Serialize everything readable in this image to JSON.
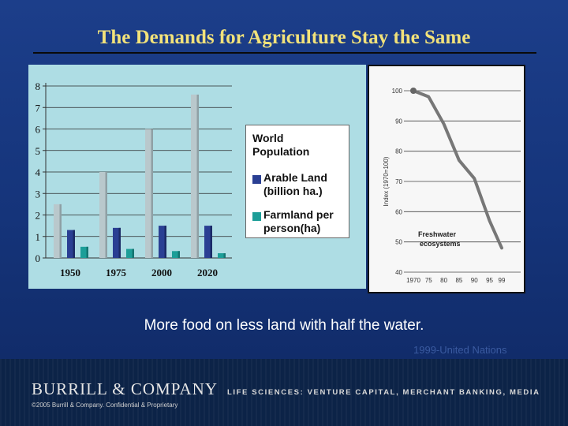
{
  "slide": {
    "title": "The Demands for Agriculture Stay the Same",
    "caption": "More food on less land with half the water.",
    "credit": "1999-United Nations"
  },
  "footer": {
    "brand": "BURRILL & COMPANY",
    "tagline": "LIFE SCIENCES: VENTURE CAPITAL, MERCHANT BANKING, MEDIA",
    "copyright": "©2005 Burrill & Company. Confidential & Proprietary"
  },
  "colors": {
    "population": "#b9c8cc",
    "arable": "#2a3f93",
    "farmland": "#1c9e98"
  },
  "chart_data": [
    {
      "type": "bar",
      "categories": [
        "1950",
        "1975",
        "2000",
        "2020"
      ],
      "yticks": [
        "0",
        "1",
        "2",
        "3",
        "4",
        "5",
        "6",
        "7",
        "8"
      ],
      "ylim": [
        0,
        8
      ],
      "series": [
        {
          "name": "World Population",
          "values": [
            2.5,
            4.0,
            6.0,
            7.6
          ]
        },
        {
          "name": "Arable Land (billion ha.)",
          "values": [
            1.3,
            1.4,
            1.5,
            1.5
          ]
        },
        {
          "name": "Farmland per person(ha)",
          "values": [
            0.52,
            0.42,
            0.32,
            0.22
          ]
        }
      ],
      "legend": [
        "World Population",
        "Arable Land (billion ha.)",
        "Farmland per person(ha)"
      ],
      "legend_lines": [
        [
          "World",
          "Population"
        ],
        [
          "Arable Land",
          "(billion ha.)"
        ],
        [
          "Farmland per",
          "person(ha)"
        ]
      ],
      "legend_position": "right"
    },
    {
      "type": "line",
      "ylabel": "Index (1970=100)",
      "ylim": [
        40,
        100
      ],
      "yticks": [
        "40",
        "50",
        "60",
        "70",
        "80",
        "90",
        "100"
      ],
      "xticks": [
        "1970",
        "75",
        "80",
        "85",
        "90",
        "95",
        "99"
      ],
      "series": [
        {
          "name": "Freshwater ecosystems",
          "label_lines": [
            "Freshwater",
            "ecosystems"
          ],
          "x": [
            1970,
            1975,
            1980,
            1985,
            1990,
            1995,
            1999
          ],
          "y": [
            100,
            98,
            89,
            77,
            71,
            57,
            48
          ]
        }
      ]
    }
  ]
}
